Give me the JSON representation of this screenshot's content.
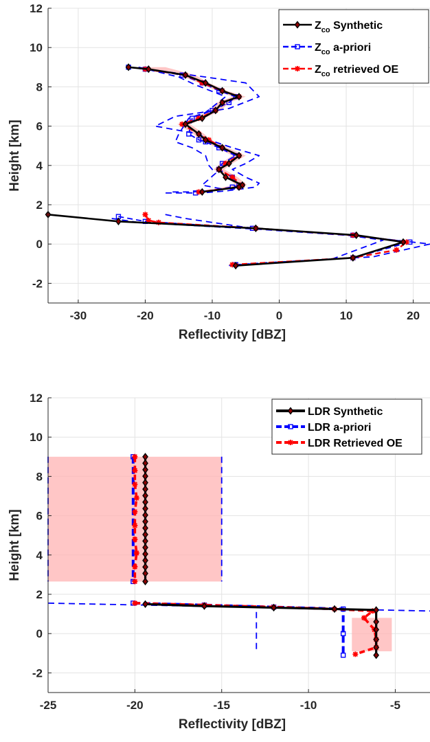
{
  "chart_data": [
    {
      "type": "line",
      "xlabel": "Reflectivity [dBZ]",
      "ylabel": "Height [km]",
      "xlim": [
        -34.5,
        22.5
      ],
      "ylim": [
        -3,
        12
      ],
      "xticks": [
        -30,
        -20,
        -10,
        0,
        10,
        20
      ],
      "yticks": [
        -2,
        0,
        2,
        4,
        6,
        8,
        10,
        12
      ],
      "grid": true,
      "legend_position": "top-right",
      "legend": [
        {
          "prefix": "Z",
          "sub": "co",
          "suffix": " Synthetic",
          "color": "#000000",
          "style": "solid",
          "marker": "diamond"
        },
        {
          "prefix": "Z",
          "sub": "co",
          "suffix": " a-priori",
          "color": "#0000ff",
          "style": "dashed",
          "marker": "square"
        },
        {
          "prefix": "Z",
          "sub": "co",
          "suffix": " retrieved OE",
          "color": "#ff0000",
          "style": "dashed",
          "marker": "star"
        }
      ],
      "series": [
        {
          "name": "Zco Synthetic",
          "color": "#000000",
          "x": [
            -22.5,
            -19.5,
            -14,
            -11,
            -8.5,
            -6,
            -8.5,
            -9.5,
            -11.5,
            -14,
            -12,
            -11,
            -8.5,
            -6,
            -7.5,
            -9,
            -8,
            -5.5,
            -6,
            -11.5
          ],
          "y": [
            9,
            8.9,
            8.6,
            8.2,
            7.8,
            7.5,
            7.2,
            6.8,
            6.4,
            6.1,
            5.6,
            5.3,
            4.9,
            4.5,
            4.1,
            3.8,
            3.4,
            3,
            2.9,
            2.65
          ]
        },
        {
          "name": "Zco Synthetic",
          "color": "#000000",
          "x": [
            -34.5,
            -24,
            -3.5,
            11.5,
            18.5,
            11,
            -6.5
          ],
          "y": [
            1.5,
            1.15,
            0.8,
            0.45,
            0.1,
            -0.7,
            -1.1
          ]
        },
        {
          "name": "Zco a-priori",
          "color": "#0000ff",
          "x": [
            -22.5,
            -20,
            -14.5,
            -11.5,
            -9,
            -6.5,
            -7.5,
            -10,
            -13,
            -13.5,
            -12,
            -11,
            -9,
            -6.5,
            -8.5,
            -9,
            -7,
            -6,
            -7,
            -12.5
          ],
          "y": [
            9,
            8.9,
            8.6,
            8.2,
            7.8,
            7.5,
            7.2,
            6.8,
            6.4,
            5.6,
            5.3,
            5.2,
            4.9,
            4.5,
            4.1,
            3.8,
            3.4,
            3,
            2.9,
            2.6
          ]
        },
        {
          "name": "Zco a-priori",
          "color": "#0000ff",
          "x": [
            -24,
            -20,
            -4,
            11,
            19.5,
            11,
            -6.5
          ],
          "y": [
            1.4,
            1.15,
            0.8,
            0.45,
            0.1,
            -0.7,
            -1.05
          ]
        },
        {
          "name": "Zco retrieved OE",
          "color": "#ff0000",
          "x": [
            -20,
            -14,
            -11.5,
            -8.5,
            -6,
            -8.5,
            -9.5,
            -12,
            -14.5,
            -12,
            -10.5,
            -8.5,
            -6,
            -8,
            -9,
            -7,
            -5.5,
            -6,
            -12
          ],
          "y": [
            8.9,
            8.6,
            8.2,
            7.8,
            7.5,
            7.2,
            6.8,
            6.4,
            6.1,
            5.6,
            5.3,
            4.9,
            4.5,
            4.1,
            3.8,
            3.4,
            3,
            2.9,
            2.65
          ]
        },
        {
          "name": "Zco retrieved OE",
          "color": "#ff0000",
          "x": [
            -20,
            -19.5,
            -18,
            -3.5,
            11,
            19,
            17.5,
            11,
            -7
          ],
          "y": [
            1.5,
            1.2,
            1.1,
            0.8,
            0.45,
            0.1,
            -0.3,
            -0.7,
            -1.05
          ]
        },
        {
          "name": "",
          "color": "#0000ff",
          "style": "bound",
          "x": [
            -22.5,
            -17.5,
            -11,
            -5,
            -3,
            -7.5,
            -15.5,
            -18.5,
            -12,
            -10.5,
            -7,
            -3,
            -5,
            -7,
            -5,
            -3,
            -3.5,
            -8,
            -11.5,
            -17
          ],
          "y": [
            9,
            8.8,
            8.5,
            8.2,
            7.5,
            6.9,
            6.5,
            6,
            5.6,
            5.3,
            4.9,
            4.5,
            4.1,
            3.8,
            3.4,
            3.1,
            2.9,
            2.7,
            2.6,
            2.6
          ]
        },
        {
          "name": "",
          "color": "#0000ff",
          "style": "bound",
          "x": [
            -21,
            -15,
            -12.5,
            -8,
            -9.5,
            -11,
            -13.5,
            -15,
            -15.5,
            -13,
            -11,
            -10.5,
            -9.5,
            -10.5,
            -11.5,
            -8.5,
            -9,
            -13,
            -16
          ],
          "y": [
            9,
            8.5,
            8.1,
            7.5,
            7.1,
            6.7,
            6.4,
            5.6,
            5.2,
            4.9,
            4.5,
            4,
            3.6,
            3.3,
            3,
            2.8,
            2.75,
            2.65,
            2.65
          ]
        },
        {
          "name": "",
          "color": "#0000ff",
          "style": "bound",
          "x": [
            -25,
            -21,
            -3,
            12,
            22.5,
            14,
            -4.5
          ],
          "y": [
            1.3,
            1.1,
            0.75,
            0.4,
            0,
            -0.65,
            -1.0
          ]
        },
        {
          "name": "",
          "color": "#0000ff",
          "style": "bound",
          "x": [
            -17,
            -14,
            -5,
            9,
            15.5,
            8,
            -8
          ],
          "y": [
            1.5,
            1.3,
            0.85,
            0.5,
            0.2,
            -0.75,
            -1.1
          ]
        }
      ],
      "band": {
        "color": "#ffb3b3",
        "y": [
          9,
          8.6,
          8.2,
          7.8,
          7.5,
          7.2,
          6.8,
          6.4,
          6.1,
          5.6,
          5.3,
          4.9,
          4.5,
          4.1,
          3.8,
          3.4,
          3,
          2.65
        ],
        "lower": [
          -21,
          -15,
          -12,
          -9.3,
          -7,
          -9.3,
          -10.3,
          -12.8,
          -15.2,
          -12.8,
          -11.8,
          -9.3,
          -7,
          -8.8,
          -9.8,
          -7.8,
          -6.5,
          -12.5
        ],
        "upper": [
          -17,
          -12.5,
          -10.5,
          -7.8,
          -5,
          -7.5,
          -8.7,
          -11.2,
          -13.3,
          -11.2,
          -10.2,
          -7.7,
          -5,
          -7,
          -8.2,
          -6.2,
          -4.8,
          -11
        ]
      }
    },
    {
      "type": "line",
      "xlabel": "Reflectivity [dBZ]",
      "ylabel": "Height [km]",
      "xlim": [
        -25,
        -3
      ],
      "ylim": [
        -3,
        12
      ],
      "xticks": [
        -25,
        -20,
        -15,
        -10,
        -5
      ],
      "yticks": [
        -2,
        0,
        2,
        4,
        6,
        8,
        10,
        12
      ],
      "grid": true,
      "legend_position": "top-right",
      "legend": [
        {
          "prefix": "LDR Synthetic",
          "sub": "",
          "suffix": "",
          "color": "#000000",
          "style": "solid",
          "marker": "diamond"
        },
        {
          "prefix": "LDR a-priori",
          "sub": "",
          "suffix": "",
          "color": "#0000ff",
          "style": "dashed",
          "marker": "square"
        },
        {
          "prefix": "LDR Retrieved OE",
          "sub": "",
          "suffix": "",
          "color": "#ff0000",
          "style": "dashed",
          "marker": "star"
        }
      ],
      "series": [
        {
          "name": "LDR Synthetic",
          "color": "#000000",
          "x": [
            -19.4,
            -19.4,
            -19.4,
            -19.4,
            -19.4,
            -19.4,
            -19.4,
            -19.4,
            -19.4,
            -19.4,
            -19.4,
            -19.4,
            -19.4,
            -19.4,
            -19.4,
            -19.4,
            -19.4,
            -19.4,
            -19.4,
            -19.4
          ],
          "y": [
            9,
            8.67,
            8.34,
            8.01,
            7.68,
            7.35,
            7.02,
            6.69,
            6.36,
            6.03,
            5.7,
            5.37,
            5.04,
            4.71,
            4.38,
            4.05,
            3.72,
            3.39,
            3.06,
            2.65
          ]
        },
        {
          "name": "LDR Synthetic",
          "color": "#000000",
          "x": [
            -19.4,
            -16,
            -12,
            -8.5,
            -6.1,
            -6.1,
            -6.1,
            -6.1,
            -6.1,
            -6.1
          ],
          "y": [
            1.5,
            1.4,
            1.32,
            1.25,
            1.2,
            0.6,
            0.2,
            -0.3,
            -0.7,
            -1.1
          ]
        },
        {
          "name": "LDR a-priori",
          "color": "#0000ff",
          "x": [
            -20.1,
            -20.1
          ],
          "y": [
            9,
            2.65
          ]
        },
        {
          "name": "LDR a-priori",
          "color": "#0000ff",
          "x": [
            -20.1,
            -16,
            -12,
            -8,
            -8,
            -8
          ],
          "y": [
            1.55,
            1.45,
            1.35,
            1.25,
            0,
            -1.1
          ]
        },
        {
          "name": "LDR Retrieved OE",
          "color": "#ff0000",
          "x": [
            -20,
            -20,
            -20,
            -19.9,
            -20,
            -20,
            -20,
            -19.9,
            -20,
            -20
          ],
          "y": [
            9,
            8.3,
            7.6,
            6.9,
            6.2,
            5.5,
            4.8,
            4.1,
            3.4,
            2.65
          ]
        },
        {
          "name": "LDR Retrieved OE",
          "color": "#ff0000",
          "x": [
            -20,
            -16,
            -12,
            -8.5,
            -6.3,
            -6.8,
            -6.2,
            -6.1,
            -6.1,
            -7.3
          ],
          "y": [
            1.55,
            1.45,
            1.35,
            1.25,
            1.15,
            0.8,
            0.2,
            -0.3,
            -0.7,
            -1.05
          ]
        },
        {
          "name": "",
          "color": "#0000ff",
          "style": "bound",
          "x": [
            -25,
            -25
          ],
          "y": [
            9,
            2.65
          ]
        },
        {
          "name": "",
          "color": "#0000ff",
          "style": "bound",
          "x": [
            -15,
            -15
          ],
          "y": [
            9,
            2.65
          ]
        },
        {
          "name": "",
          "color": "#0000ff",
          "style": "bound",
          "x": [
            -25,
            -3
          ],
          "y": [
            1.55,
            1.15
          ]
        },
        {
          "name": "",
          "color": "#0000ff",
          "style": "bound",
          "x": [
            -13,
            -13
          ],
          "y": [
            1.1,
            -0.9
          ]
        }
      ],
      "band": {
        "color": "#ffb3b3",
        "rects": [
          {
            "x0": -25,
            "x1": -15,
            "y0": 2.65,
            "y1": 9
          },
          {
            "x0": -7.5,
            "x1": -5.2,
            "y0": -0.9,
            "y1": 0.8
          }
        ]
      }
    }
  ]
}
